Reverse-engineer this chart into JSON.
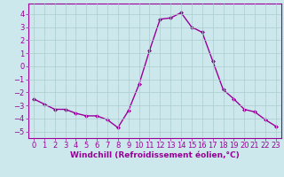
{
  "x": [
    0,
    1,
    2,
    3,
    4,
    5,
    6,
    7,
    8,
    9,
    10,
    11,
    12,
    13,
    14,
    15,
    16,
    17,
    18,
    19,
    20,
    21,
    22,
    23
  ],
  "y": [
    -2.5,
    -2.9,
    -3.3,
    -3.3,
    -3.6,
    -3.8,
    -3.8,
    -4.1,
    -4.7,
    -3.4,
    -1.4,
    1.2,
    3.6,
    3.7,
    4.1,
    3.0,
    2.6,
    0.4,
    -1.8,
    -2.5,
    -3.3,
    -3.5,
    -4.1,
    -4.6
  ],
  "line_color": "#990099",
  "marker": "D",
  "marker_size": 2,
  "background_color": "#cce8ec",
  "grid_color": "#aacccc",
  "xlabel": "Windchill (Refroidissement éolien,°C)",
  "ylabel": "",
  "xlim": [
    -0.5,
    23.5
  ],
  "ylim": [
    -5.5,
    4.8
  ],
  "yticks": [
    -5,
    -4,
    -3,
    -2,
    -1,
    0,
    1,
    2,
    3,
    4
  ],
  "xticks": [
    0,
    1,
    2,
    3,
    4,
    5,
    6,
    7,
    8,
    9,
    10,
    11,
    12,
    13,
    14,
    15,
    16,
    17,
    18,
    19,
    20,
    21,
    22,
    23
  ],
  "tick_color": "#990099",
  "label_color": "#990099",
  "spine_color": "#990099",
  "xlabel_fontsize": 6.5,
  "tick_fontsize": 6,
  "line_width": 1.0
}
